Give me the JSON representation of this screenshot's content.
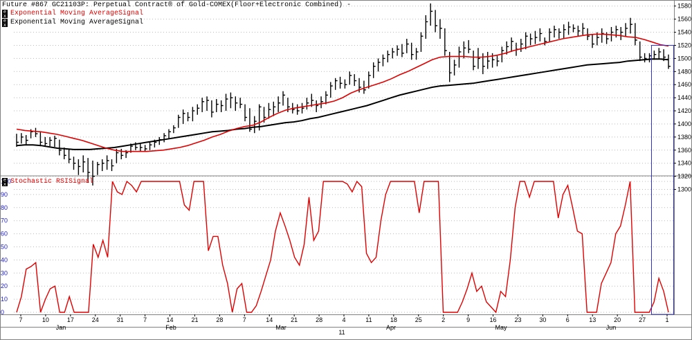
{
  "legend": {
    "title": "Future #867 GC21103P: Perpetual Contract® of Gold-COMEX(Floor+Electronic Combined) -",
    "ema_fast_label": "Exponential Moving AverageSignal",
    "ema_slow_label": "Exponential Moving AverageSignal",
    "stoch_label": "Stochastic RSISignal",
    "toggle_letters": [
      "e",
      "x"
    ]
  },
  "colors": {
    "background": "#ffffff",
    "ema_fast": "#e00000",
    "ema_slow": "#000000",
    "bars": "#000000",
    "stoch": "#e00000",
    "grid": "#b8b8b8",
    "cursor": "#3030d0",
    "axis_text": "#000000",
    "stoch_axis_text": "#2020c0"
  },
  "chart_data": [
    {
      "type": "ohlc",
      "ylim": [
        1290,
        1585
      ],
      "y_ticks": [
        1580,
        1560,
        1540,
        1520,
        1500,
        1480,
        1460,
        1440,
        1420,
        1400,
        1380,
        1360,
        1340,
        1320,
        1300
      ],
      "y_tick_labels": [
        "1580",
        "1560",
        "1540",
        "1520",
        "1500",
        "1480",
        "1460",
        "1440",
        "1420",
        "1400",
        "1380",
        "1360",
        "1340",
        "1320",
        "1300"
      ],
      "bars": [
        {
          "h": 1385,
          "l": 1365,
          "c": 1372
        },
        {
          "h": 1386,
          "l": 1370,
          "c": 1380
        },
        {
          "h": 1383,
          "l": 1368,
          "c": 1375
        },
        {
          "h": 1392,
          "l": 1378,
          "c": 1388
        },
        {
          "h": 1394,
          "l": 1380,
          "c": 1385
        },
        {
          "h": 1388,
          "l": 1366,
          "c": 1372
        },
        {
          "h": 1380,
          "l": 1365,
          "c": 1370
        },
        {
          "h": 1380,
          "l": 1366,
          "c": 1375
        },
        {
          "h": 1382,
          "l": 1365,
          "c": 1378
        },
        {
          "h": 1376,
          "l": 1352,
          "c": 1360
        },
        {
          "h": 1364,
          "l": 1346,
          "c": 1352
        },
        {
          "h": 1362,
          "l": 1340,
          "c": 1346
        },
        {
          "h": 1350,
          "l": 1330,
          "c": 1340
        },
        {
          "h": 1346,
          "l": 1322,
          "c": 1335
        },
        {
          "h": 1352,
          "l": 1326,
          "c": 1342
        },
        {
          "h": 1348,
          "l": 1310,
          "c": 1326
        },
        {
          "h": 1344,
          "l": 1306,
          "c": 1320
        },
        {
          "h": 1342,
          "l": 1322,
          "c": 1338
        },
        {
          "h": 1346,
          "l": 1328,
          "c": 1340
        },
        {
          "h": 1352,
          "l": 1330,
          "c": 1344
        },
        {
          "h": 1346,
          "l": 1328,
          "c": 1336
        },
        {
          "h": 1362,
          "l": 1340,
          "c": 1356
        },
        {
          "h": 1362,
          "l": 1346,
          "c": 1352
        },
        {
          "h": 1360,
          "l": 1348,
          "c": 1356
        },
        {
          "h": 1370,
          "l": 1356,
          "c": 1366
        },
        {
          "h": 1372,
          "l": 1360,
          "c": 1364
        },
        {
          "h": 1370,
          "l": 1358,
          "c": 1364
        },
        {
          "h": 1368,
          "l": 1358,
          "c": 1362
        },
        {
          "h": 1372,
          "l": 1360,
          "c": 1368
        },
        {
          "h": 1376,
          "l": 1364,
          "c": 1372
        },
        {
          "h": 1380,
          "l": 1368,
          "c": 1376
        },
        {
          "h": 1386,
          "l": 1372,
          "c": 1382
        },
        {
          "h": 1392,
          "l": 1378,
          "c": 1388
        },
        {
          "h": 1398,
          "l": 1386,
          "c": 1394
        },
        {
          "h": 1414,
          "l": 1394,
          "c": 1410
        },
        {
          "h": 1422,
          "l": 1400,
          "c": 1416
        },
        {
          "h": 1418,
          "l": 1404,
          "c": 1410
        },
        {
          "h": 1426,
          "l": 1404,
          "c": 1420
        },
        {
          "h": 1430,
          "l": 1414,
          "c": 1424
        },
        {
          "h": 1440,
          "l": 1418,
          "c": 1434
        },
        {
          "h": 1442,
          "l": 1420,
          "c": 1436
        },
        {
          "h": 1436,
          "l": 1410,
          "c": 1418
        },
        {
          "h": 1438,
          "l": 1418,
          "c": 1430
        },
        {
          "h": 1436,
          "l": 1418,
          "c": 1428
        },
        {
          "h": 1446,
          "l": 1420,
          "c": 1438
        },
        {
          "h": 1448,
          "l": 1424,
          "c": 1440
        },
        {
          "h": 1442,
          "l": 1420,
          "c": 1432
        },
        {
          "h": 1440,
          "l": 1424,
          "c": 1430
        },
        {
          "h": 1430,
          "l": 1404,
          "c": 1410
        },
        {
          "h": 1424,
          "l": 1388,
          "c": 1392
        },
        {
          "h": 1412,
          "l": 1386,
          "c": 1404
        },
        {
          "h": 1430,
          "l": 1390,
          "c": 1426
        },
        {
          "h": 1426,
          "l": 1402,
          "c": 1410
        },
        {
          "h": 1432,
          "l": 1408,
          "c": 1422
        },
        {
          "h": 1434,
          "l": 1412,
          "c": 1426
        },
        {
          "h": 1442,
          "l": 1418,
          "c": 1432
        },
        {
          "h": 1450,
          "l": 1428,
          "c": 1444
        },
        {
          "h": 1440,
          "l": 1418,
          "c": 1426
        },
        {
          "h": 1432,
          "l": 1416,
          "c": 1422
        },
        {
          "h": 1430,
          "l": 1414,
          "c": 1420
        },
        {
          "h": 1432,
          "l": 1416,
          "c": 1424
        },
        {
          "h": 1440,
          "l": 1422,
          "c": 1432
        },
        {
          "h": 1446,
          "l": 1426,
          "c": 1436
        },
        {
          "h": 1436,
          "l": 1418,
          "c": 1428
        },
        {
          "h": 1442,
          "l": 1424,
          "c": 1434
        },
        {
          "h": 1450,
          "l": 1430,
          "c": 1444
        },
        {
          "h": 1464,
          "l": 1440,
          "c": 1458
        },
        {
          "h": 1470,
          "l": 1452,
          "c": 1466
        },
        {
          "h": 1472,
          "l": 1454,
          "c": 1462
        },
        {
          "h": 1468,
          "l": 1454,
          "c": 1460
        },
        {
          "h": 1480,
          "l": 1460,
          "c": 1474
        },
        {
          "h": 1476,
          "l": 1458,
          "c": 1466
        },
        {
          "h": 1470,
          "l": 1448,
          "c": 1456
        },
        {
          "h": 1466,
          "l": 1446,
          "c": 1452
        },
        {
          "h": 1480,
          "l": 1454,
          "c": 1474
        },
        {
          "h": 1494,
          "l": 1470,
          "c": 1488
        },
        {
          "h": 1500,
          "l": 1480,
          "c": 1494
        },
        {
          "h": 1506,
          "l": 1488,
          "c": 1500
        },
        {
          "h": 1512,
          "l": 1494,
          "c": 1506
        },
        {
          "h": 1516,
          "l": 1500,
          "c": 1510
        },
        {
          "h": 1520,
          "l": 1504,
          "c": 1514
        },
        {
          "h": 1522,
          "l": 1502,
          "c": 1508
        },
        {
          "h": 1530,
          "l": 1508,
          "c": 1522
        },
        {
          "h": 1524,
          "l": 1498,
          "c": 1506
        },
        {
          "h": 1516,
          "l": 1498,
          "c": 1510
        },
        {
          "h": 1540,
          "l": 1510,
          "c": 1534
        },
        {
          "h": 1566,
          "l": 1530,
          "c": 1556
        },
        {
          "h": 1584,
          "l": 1550,
          "c": 1572
        },
        {
          "h": 1574,
          "l": 1540,
          "c": 1550
        },
        {
          "h": 1560,
          "l": 1530,
          "c": 1546
        },
        {
          "h": 1546,
          "l": 1504,
          "c": 1512
        },
        {
          "h": 1510,
          "l": 1464,
          "c": 1478
        },
        {
          "h": 1498,
          "l": 1474,
          "c": 1490
        },
        {
          "h": 1518,
          "l": 1486,
          "c": 1510
        },
        {
          "h": 1526,
          "l": 1500,
          "c": 1516
        },
        {
          "h": 1528,
          "l": 1508,
          "c": 1514
        },
        {
          "h": 1512,
          "l": 1482,
          "c": 1488
        },
        {
          "h": 1516,
          "l": 1484,
          "c": 1500
        },
        {
          "h": 1508,
          "l": 1476,
          "c": 1488
        },
        {
          "h": 1510,
          "l": 1484,
          "c": 1496
        },
        {
          "h": 1508,
          "l": 1486,
          "c": 1498
        },
        {
          "h": 1504,
          "l": 1488,
          "c": 1496
        },
        {
          "h": 1518,
          "l": 1494,
          "c": 1512
        },
        {
          "h": 1526,
          "l": 1506,
          "c": 1518
        },
        {
          "h": 1532,
          "l": 1510,
          "c": 1526
        },
        {
          "h": 1524,
          "l": 1504,
          "c": 1514
        },
        {
          "h": 1530,
          "l": 1510,
          "c": 1522
        },
        {
          "h": 1540,
          "l": 1514,
          "c": 1534
        },
        {
          "h": 1538,
          "l": 1520,
          "c": 1530
        },
        {
          "h": 1542,
          "l": 1522,
          "c": 1532
        },
        {
          "h": 1546,
          "l": 1526,
          "c": 1538
        },
        {
          "h": 1532,
          "l": 1520,
          "c": 1526
        },
        {
          "h": 1546,
          "l": 1526,
          "c": 1540
        },
        {
          "h": 1550,
          "l": 1532,
          "c": 1544
        },
        {
          "h": 1546,
          "l": 1530,
          "c": 1540
        },
        {
          "h": 1552,
          "l": 1530,
          "c": 1544
        },
        {
          "h": 1556,
          "l": 1536,
          "c": 1548
        },
        {
          "h": 1552,
          "l": 1540,
          "c": 1546
        },
        {
          "h": 1550,
          "l": 1534,
          "c": 1542
        },
        {
          "h": 1554,
          "l": 1536,
          "c": 1546
        },
        {
          "h": 1546,
          "l": 1528,
          "c": 1534
        },
        {
          "h": 1536,
          "l": 1516,
          "c": 1522
        },
        {
          "h": 1540,
          "l": 1520,
          "c": 1532
        },
        {
          "h": 1546,
          "l": 1524,
          "c": 1538
        },
        {
          "h": 1540,
          "l": 1522,
          "c": 1530
        },
        {
          "h": 1548,
          "l": 1526,
          "c": 1540
        },
        {
          "h": 1550,
          "l": 1532,
          "c": 1544
        },
        {
          "h": 1548,
          "l": 1528,
          "c": 1540
        },
        {
          "h": 1554,
          "l": 1534,
          "c": 1546
        },
        {
          "h": 1562,
          "l": 1538,
          "c": 1552
        },
        {
          "h": 1554,
          "l": 1520,
          "c": 1528
        },
        {
          "h": 1526,
          "l": 1496,
          "c": 1502
        },
        {
          "h": 1508,
          "l": 1494,
          "c": 1500
        },
        {
          "h": 1508,
          "l": 1494,
          "c": 1504
        },
        {
          "h": 1512,
          "l": 1498,
          "c": 1506
        },
        {
          "h": 1516,
          "l": 1500,
          "c": 1510
        },
        {
          "h": 1514,
          "l": 1496,
          "c": 1502
        },
        {
          "h": 1506,
          "l": 1484,
          "c": 1488
        }
      ],
      "ema_fast": [
        1392,
        1390,
        1389,
        1388,
        1386,
        1384,
        1381,
        1378,
        1375,
        1371,
        1367,
        1363,
        1360,
        1358,
        1358,
        1358,
        1358,
        1359,
        1360,
        1362,
        1364,
        1367,
        1371,
        1375,
        1380,
        1384,
        1389,
        1393,
        1396,
        1398,
        1403,
        1410,
        1416,
        1421,
        1424,
        1426,
        1428,
        1430,
        1432,
        1435,
        1440,
        1447,
        1452,
        1456,
        1460,
        1464,
        1469,
        1475,
        1480,
        1486,
        1492,
        1498,
        1502,
        1503,
        1503,
        1503,
        1502,
        1502,
        1503,
        1505,
        1508,
        1512,
        1515,
        1518,
        1521,
        1524,
        1527,
        1530,
        1532,
        1534,
        1536,
        1537,
        1537,
        1536,
        1535,
        1533,
        1532,
        1529,
        1525,
        1521,
        1519
      ],
      "ema_slow": [
        1367,
        1368,
        1368,
        1367,
        1365,
        1363,
        1362,
        1361,
        1361,
        1361,
        1362,
        1363,
        1364,
        1366,
        1368,
        1370,
        1372,
        1374,
        1376,
        1378,
        1380,
        1382,
        1384,
        1386,
        1388,
        1389,
        1390,
        1392,
        1393,
        1395,
        1396,
        1398,
        1400,
        1402,
        1403,
        1405,
        1408,
        1410,
        1413,
        1416,
        1419,
        1422,
        1425,
        1428,
        1432,
        1436,
        1440,
        1444,
        1447,
        1450,
        1453,
        1456,
        1458,
        1459,
        1460,
        1461,
        1462,
        1464,
        1466,
        1468,
        1470,
        1472,
        1474,
        1476,
        1478,
        1480,
        1482,
        1484,
        1486,
        1488,
        1490,
        1491,
        1492,
        1493,
        1494,
        1496,
        1497,
        1498,
        1499,
        1499,
        1498
      ]
    },
    {
      "type": "line",
      "name": "Stochastic RSISignal",
      "ylim": [
        0,
        100
      ],
      "y_ticks": [
        0,
        10,
        20,
        30,
        40,
        50,
        60,
        70,
        80,
        90,
        100
      ],
      "y_tick_labels": [
        "0",
        "10",
        "20",
        "30",
        "40",
        "50",
        "60",
        "70",
        "80",
        "90",
        "100"
      ],
      "values": [
        0,
        12,
        33,
        35,
        38,
        0,
        10,
        18,
        20,
        0,
        0,
        12,
        0,
        0,
        0,
        0,
        52,
        42,
        55,
        42,
        100,
        92,
        90,
        100,
        97,
        92,
        100,
        100,
        100,
        100,
        100,
        100,
        100,
        100,
        100,
        82,
        78,
        100,
        100,
        100,
        47,
        58,
        58,
        36,
        22,
        0,
        18,
        22,
        0,
        0,
        5,
        16,
        28,
        40,
        62,
        76,
        66,
        55,
        42,
        36,
        52,
        88,
        55,
        62,
        100,
        100,
        100,
        100,
        100,
        98,
        92,
        100,
        96,
        45,
        38,
        42,
        70,
        90,
        100,
        100,
        100,
        100,
        100,
        100,
        76,
        100,
        100,
        100,
        100,
        0,
        0,
        0,
        0,
        8,
        18,
        30,
        16,
        20,
        8,
        4,
        0,
        16,
        12,
        40,
        80,
        100,
        100,
        88,
        100,
        100,
        100,
        100,
        100,
        72,
        90,
        97,
        80,
        62,
        60,
        0,
        0,
        0,
        22,
        30,
        38,
        60,
        66,
        82,
        100,
        0,
        0,
        0,
        0,
        8,
        26,
        16,
        0
      ]
    },
    {
      "type": "axis",
      "x_tick_labels": [
        "7",
        "10",
        "17",
        "24",
        "31",
        "7",
        "14",
        "21",
        "28",
        "7",
        "14",
        "21",
        "28",
        "4",
        "11",
        "18",
        "25",
        "2",
        "9",
        "16",
        "23",
        "30",
        "6",
        "13",
        "20",
        "27",
        "1"
      ],
      "months": [
        "Jan",
        "Feb",
        "Mar",
        "Apr",
        "May",
        "Jun"
      ],
      "bottom_label": "11"
    }
  ]
}
